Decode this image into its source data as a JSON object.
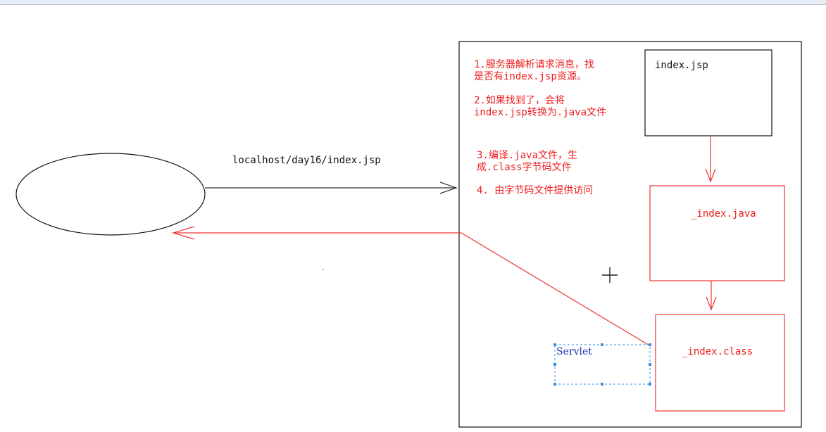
{
  "diagram": {
    "request_url": "localhost/day16/index.jsp",
    "files": {
      "jsp": "index.jsp",
      "java": "_index.java",
      "class": "_index.class"
    },
    "servlet_label": "Servlet",
    "steps": [
      {
        "line1": "1.服务器解析请求消息，找",
        "line2": "是否有index.jsp资源。"
      },
      {
        "line1": "2.如果找到了，会将",
        "line2": "index.jsp转换为.java文件"
      },
      {
        "line1": "3.编译.java文件，生",
        "line2": "成.class字节码文件"
      },
      {
        "line1": "4. 由字节码文件提供访问",
        "line2": ""
      }
    ]
  },
  "colors": {
    "red": "#ee1c1c",
    "black": "#111111",
    "servlet_blue": "#2233aa",
    "selection_blue": "#3a8ee6"
  }
}
